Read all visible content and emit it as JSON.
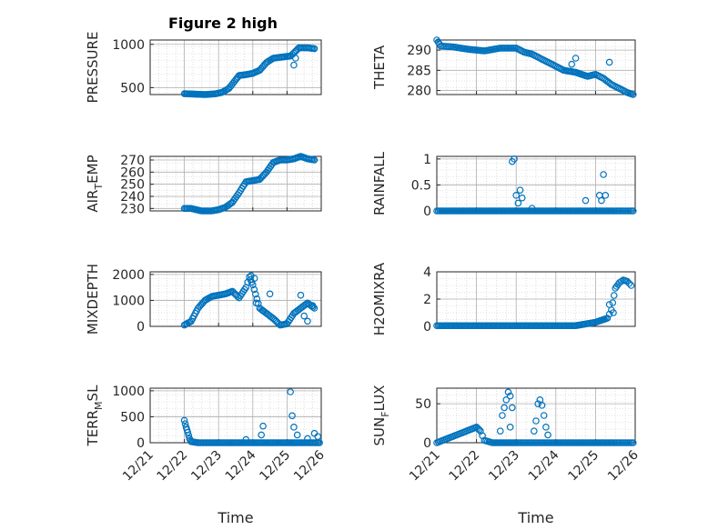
{
  "figure_title": "Figure 2 high",
  "colors": {
    "marker": "#0072BD",
    "axis": "#262626",
    "grid": "#c8c8c8"
  },
  "chart_data": [
    {
      "type": "scatter",
      "name": "pressure",
      "ylabel": "PRESSURE",
      "xlim": [
        21,
        26
      ],
      "ylim": [
        420,
        1050
      ],
      "yticks": [
        500,
        1000
      ],
      "xticks": [],
      "xlabel": "",
      "curve": [
        [
          22.0,
          430
        ],
        [
          22.3,
          425
        ],
        [
          22.6,
          420
        ],
        [
          22.9,
          428
        ],
        [
          23.1,
          445
        ],
        [
          23.3,
          490
        ],
        [
          23.5,
          590
        ],
        [
          23.6,
          640
        ],
        [
          23.8,
          650
        ],
        [
          24.0,
          665
        ],
        [
          24.2,
          700
        ],
        [
          24.4,
          790
        ],
        [
          24.6,
          840
        ],
        [
          24.8,
          850
        ],
        [
          25.0,
          860
        ],
        [
          25.1,
          865
        ],
        [
          25.2,
          900
        ],
        [
          25.35,
          960
        ],
        [
          25.6,
          960
        ],
        [
          25.8,
          950
        ]
      ],
      "extra": [
        [
          25.2,
          760
        ],
        [
          25.25,
          840
        ]
      ]
    },
    {
      "type": "scatter",
      "name": "theta",
      "ylabel": "THETA",
      "xlim": [
        21,
        26
      ],
      "ylim": [
        279,
        292.5
      ],
      "yticks": [
        280,
        285,
        290
      ],
      "xticks": [],
      "xlabel": "",
      "curve": [
        [
          21.0,
          292.5
        ],
        [
          21.1,
          291
        ],
        [
          21.4,
          290.8
        ],
        [
          21.8,
          290.2
        ],
        [
          22.2,
          289.8
        ],
        [
          22.6,
          290.5
        ],
        [
          23.0,
          290.5
        ],
        [
          23.2,
          289.5
        ],
        [
          23.4,
          289
        ],
        [
          23.8,
          287
        ],
        [
          24.0,
          286
        ],
        [
          24.2,
          285
        ],
        [
          24.5,
          284.5
        ],
        [
          24.8,
          283.5
        ],
        [
          25.0,
          284
        ],
        [
          25.2,
          283
        ],
        [
          25.4,
          281.5
        ],
        [
          25.6,
          280.5
        ],
        [
          25.8,
          279.5
        ],
        [
          25.95,
          279
        ]
      ],
      "extra": [
        [
          24.5,
          288
        ],
        [
          25.35,
          287
        ],
        [
          24.4,
          286.5
        ]
      ]
    },
    {
      "type": "scatter",
      "name": "air_temp",
      "ylabel": "AIR_TEMP",
      "ylabel_main": "AIR",
      "ylabel_sub": "T",
      "ylabel_rest": "EMP",
      "xlim": [
        21,
        26
      ],
      "ylim": [
        228,
        273
      ],
      "yticks": [
        230,
        240,
        250,
        260,
        270
      ],
      "xticks": [],
      "xlabel": "",
      "curve": [
        [
          22.0,
          230
        ],
        [
          22.2,
          230
        ],
        [
          22.5,
          228
        ],
        [
          22.8,
          228
        ],
        [
          23.0,
          229
        ],
        [
          23.2,
          231
        ],
        [
          23.4,
          235
        ],
        [
          23.6,
          243
        ],
        [
          23.8,
          252
        ],
        [
          24.0,
          253
        ],
        [
          24.2,
          254
        ],
        [
          24.4,
          260
        ],
        [
          24.6,
          268
        ],
        [
          24.8,
          270
        ],
        [
          25.0,
          270
        ],
        [
          25.2,
          271
        ],
        [
          25.4,
          273
        ],
        [
          25.6,
          271
        ],
        [
          25.8,
          270
        ]
      ],
      "extra": []
    },
    {
      "type": "scatter",
      "name": "rainfall",
      "ylabel": "RAINFALL",
      "xlim": [
        21,
        26
      ],
      "ylim": [
        0,
        1.05
      ],
      "yticks": [
        0,
        0.5,
        1
      ],
      "xticks": [],
      "xlabel": "",
      "curve": [
        [
          21.0,
          0
        ],
        [
          21.5,
          0
        ],
        [
          22.0,
          0
        ],
        [
          22.5,
          0
        ],
        [
          23.0,
          0
        ],
        [
          23.5,
          0
        ],
        [
          24.0,
          0
        ],
        [
          24.5,
          0
        ],
        [
          25.0,
          0
        ],
        [
          25.5,
          0
        ],
        [
          25.95,
          0
        ]
      ],
      "extra": [
        [
          22.9,
          0.95
        ],
        [
          22.95,
          1.0
        ],
        [
          23.0,
          0.3
        ],
        [
          23.1,
          0.4
        ],
        [
          23.15,
          0.25
        ],
        [
          23.05,
          0.15
        ],
        [
          23.4,
          0.05
        ],
        [
          24.75,
          0.2
        ],
        [
          25.1,
          0.3
        ],
        [
          25.15,
          0.2
        ],
        [
          25.2,
          0.7
        ],
        [
          25.25,
          0.3
        ]
      ]
    },
    {
      "type": "scatter",
      "name": "mixdepth",
      "ylabel": "MIXDEPTH",
      "xlim": [
        21,
        26
      ],
      "ylim": [
        0,
        2100
      ],
      "yticks": [
        0,
        1000,
        2000
      ],
      "xticks": [],
      "xlabel": "",
      "curve": [
        [
          22.0,
          50
        ],
        [
          22.2,
          200
        ],
        [
          22.4,
          700
        ],
        [
          22.6,
          1000
        ],
        [
          22.8,
          1150
        ],
        [
          23.0,
          1200
        ],
        [
          23.2,
          1250
        ],
        [
          23.4,
          1350
        ],
        [
          23.6,
          1100
        ],
        [
          23.8,
          1500
        ],
        [
          23.9,
          1900
        ],
        [
          24.0,
          1600
        ],
        [
          24.2,
          700
        ],
        [
          24.4,
          500
        ],
        [
          24.6,
          300
        ],
        [
          24.8,
          50
        ],
        [
          25.0,
          100
        ],
        [
          25.2,
          500
        ],
        [
          25.4,
          700
        ],
        [
          25.6,
          900
        ],
        [
          25.8,
          700
        ]
      ],
      "extra": [
        [
          23.95,
          1950
        ],
        [
          24.05,
          1850
        ],
        [
          24.1,
          900
        ],
        [
          24.5,
          1250
        ],
        [
          24.3,
          600
        ],
        [
          25.4,
          1200
        ],
        [
          25.5,
          400
        ],
        [
          25.6,
          200
        ],
        [
          25.75,
          800
        ]
      ]
    },
    {
      "type": "scatter",
      "name": "h2omixra",
      "ylabel": "H2OMIXRA",
      "xlim": [
        21,
        26
      ],
      "ylim": [
        0,
        4
      ],
      "yticks": [
        0,
        2,
        4
      ],
      "xticks": [],
      "xlabel": "",
      "curve": [
        [
          21.0,
          0.05
        ],
        [
          21.5,
          0.05
        ],
        [
          22.0,
          0.05
        ],
        [
          22.5,
          0.05
        ],
        [
          23.0,
          0.05
        ],
        [
          23.5,
          0.05
        ],
        [
          24.0,
          0.05
        ],
        [
          24.5,
          0.05
        ],
        [
          25.0,
          0.3
        ],
        [
          25.3,
          0.6
        ],
        [
          25.4,
          1.2
        ],
        [
          25.5,
          2.8
        ],
        [
          25.6,
          3.2
        ],
        [
          25.7,
          3.4
        ],
        [
          25.8,
          3.3
        ],
        [
          25.9,
          3.0
        ]
      ],
      "extra": [
        [
          25.35,
          1.6
        ],
        [
          25.45,
          1.0
        ],
        [
          25.2,
          0.5
        ]
      ]
    },
    {
      "type": "scatter",
      "name": "terr_msl",
      "ylabel": "TERR_MSL",
      "ylabel_main": "TERR",
      "ylabel_sub": "M",
      "ylabel_rest": "SL",
      "xlim": [
        21,
        26
      ],
      "ylim": [
        0,
        1050
      ],
      "yticks": [
        0,
        500,
        1000
      ],
      "xticks": [
        "12/21",
        "12/22",
        "12/23",
        "12/24",
        "12/25",
        "12/26"
      ],
      "xlabel": "Time",
      "curve": [
        [
          22.0,
          430
        ],
        [
          22.05,
          300
        ],
        [
          22.1,
          200
        ],
        [
          22.15,
          80
        ],
        [
          22.2,
          20
        ],
        [
          22.4,
          0
        ],
        [
          23.0,
          0
        ],
        [
          23.5,
          0
        ],
        [
          24.0,
          0
        ],
        [
          24.5,
          0
        ],
        [
          25.0,
          0
        ],
        [
          25.5,
          0
        ],
        [
          25.95,
          0
        ]
      ],
      "extra": [
        [
          23.8,
          60
        ],
        [
          24.3,
          320
        ],
        [
          24.25,
          150
        ],
        [
          25.1,
          980
        ],
        [
          25.15,
          520
        ],
        [
          25.2,
          300
        ],
        [
          25.3,
          150
        ],
        [
          25.6,
          80
        ],
        [
          25.8,
          180
        ],
        [
          25.9,
          120
        ]
      ]
    },
    {
      "type": "scatter",
      "name": "sun_flux",
      "ylabel": "SUN_FLUX",
      "ylabel_main": "SUN",
      "ylabel_sub": "F",
      "ylabel_rest": "LUX",
      "xlim": [
        21,
        26
      ],
      "ylim": [
        0,
        70
      ],
      "yticks": [
        0,
        50
      ],
      "xticks": [
        "12/21",
        "12/22",
        "12/23",
        "12/24",
        "12/25",
        "12/26"
      ],
      "xlabel": "Time",
      "curve": [
        [
          21.0,
          0
        ],
        [
          22.0,
          20
        ],
        [
          22.1,
          15
        ],
        [
          22.2,
          3
        ],
        [
          22.4,
          0
        ],
        [
          22.7,
          0
        ],
        [
          23.0,
          0
        ],
        [
          23.4,
          0
        ],
        [
          24.0,
          0
        ],
        [
          24.5,
          0
        ],
        [
          25.0,
          0
        ],
        [
          25.5,
          0
        ],
        [
          25.95,
          0
        ]
      ],
      "extra": [
        [
          22.6,
          15
        ],
        [
          22.65,
          35
        ],
        [
          22.7,
          45
        ],
        [
          22.75,
          55
        ],
        [
          22.8,
          65
        ],
        [
          22.85,
          60
        ],
        [
          22.9,
          45
        ],
        [
          22.85,
          20
        ],
        [
          23.5,
          28
        ],
        [
          23.55,
          50
        ],
        [
          23.6,
          55
        ],
        [
          23.65,
          48
        ],
        [
          23.7,
          35
        ],
        [
          23.75,
          20
        ],
        [
          23.8,
          10
        ],
        [
          23.45,
          15
        ]
      ]
    }
  ]
}
